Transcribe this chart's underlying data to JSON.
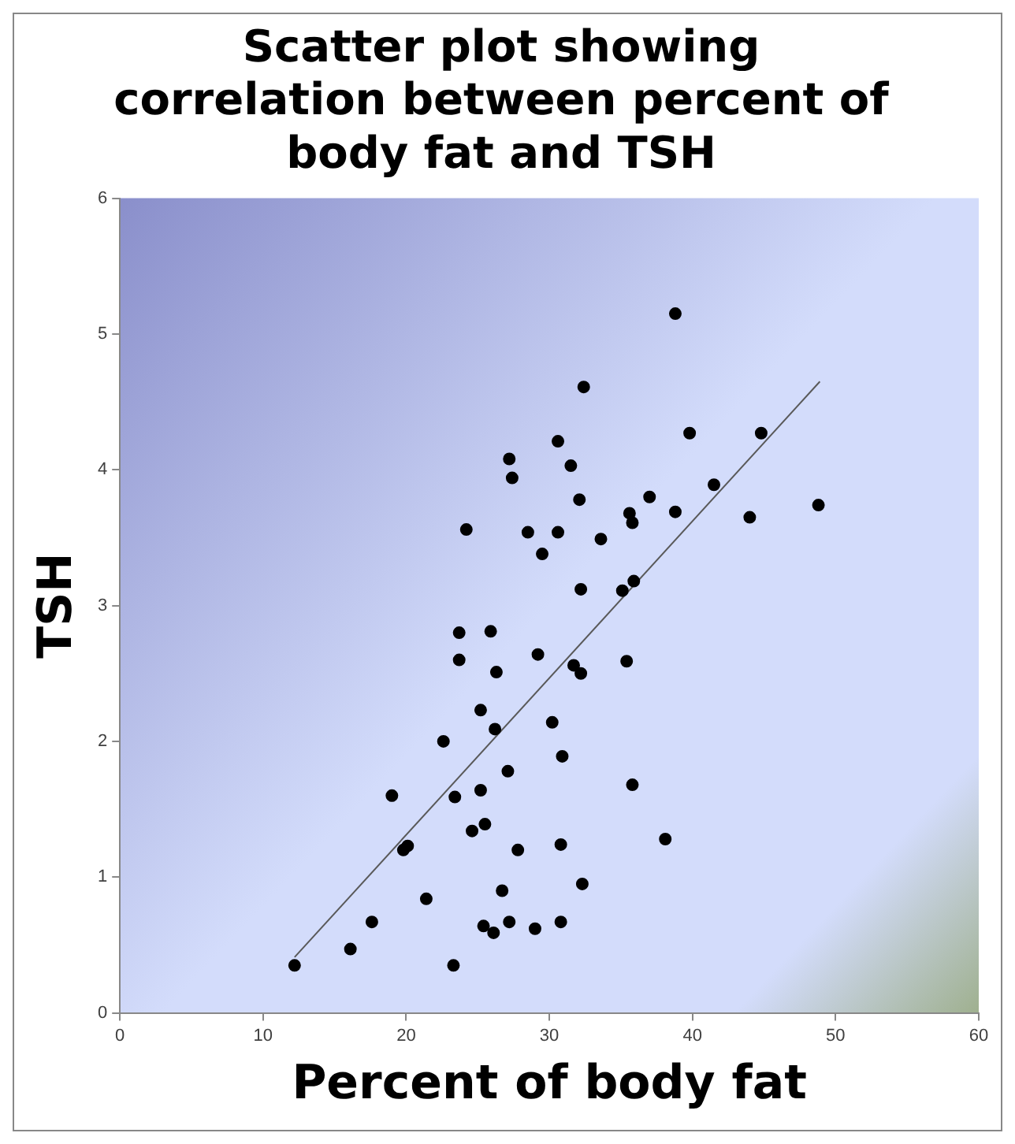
{
  "chart_data": {
    "type": "scatter",
    "title": "Scatter plot showing correlation between percent of body fat and TSH",
    "xlabel": "Percent of body fat",
    "ylabel": "TSH",
    "xlim": [
      0,
      60
    ],
    "xticks": [
      0,
      10,
      20,
      30,
      40,
      50,
      60
    ],
    "ylim": [
      0,
      6
    ],
    "yticks": [
      0,
      1,
      2,
      3,
      4,
      5,
      6
    ],
    "grid": false,
    "legend": false,
    "marker": "circle",
    "series": [
      {
        "color": "#000000",
        "x": [
          38.8,
          32.4,
          39.8,
          44.8,
          30.6,
          27.2,
          27.4,
          31.5,
          32.1,
          37.0,
          41.5,
          38.8,
          35.6,
          35.8,
          44.0,
          48.8,
          28.5,
          30.6,
          29.5,
          33.6,
          32.2,
          35.1,
          35.9,
          29.2,
          31.7,
          35.4,
          24.2,
          23.7,
          25.9,
          23.7,
          26.3,
          25.2,
          26.2,
          22.6,
          27.1,
          19.0,
          23.4,
          25.2,
          24.6,
          25.5,
          27.8,
          19.8,
          20.1,
          21.4,
          17.6,
          16.1,
          12.2,
          23.3,
          26.7,
          25.4,
          26.1,
          27.2,
          29.0,
          32.2,
          30.2,
          30.9,
          35.8,
          38.1,
          30.8,
          32.3,
          30.8
        ],
        "values": [
          5.15,
          4.61,
          4.27,
          4.27,
          4.21,
          4.08,
          3.94,
          4.03,
          3.78,
          3.8,
          3.89,
          3.69,
          3.68,
          3.61,
          3.65,
          3.74,
          3.54,
          3.54,
          3.38,
          3.49,
          3.12,
          3.11,
          3.18,
          2.64,
          2.56,
          2.59,
          3.56,
          2.8,
          2.81,
          2.6,
          2.51,
          2.23,
          2.09,
          2.0,
          1.78,
          1.6,
          1.59,
          1.64,
          1.34,
          1.39,
          1.2,
          1.2,
          1.23,
          0.84,
          0.67,
          0.47,
          0.35,
          0.35,
          0.9,
          0.64,
          0.59,
          0.67,
          0.62,
          2.5,
          2.14,
          1.89,
          1.68,
          1.28,
          1.24,
          0.95,
          0.67
        ]
      },
      {
        "type": "line",
        "color": "#595959",
        "x": [
          12.2,
          48.9
        ],
        "values": [
          0.41,
          4.65
        ],
        "marker": "none",
        "line_style": "solid"
      }
    ]
  }
}
